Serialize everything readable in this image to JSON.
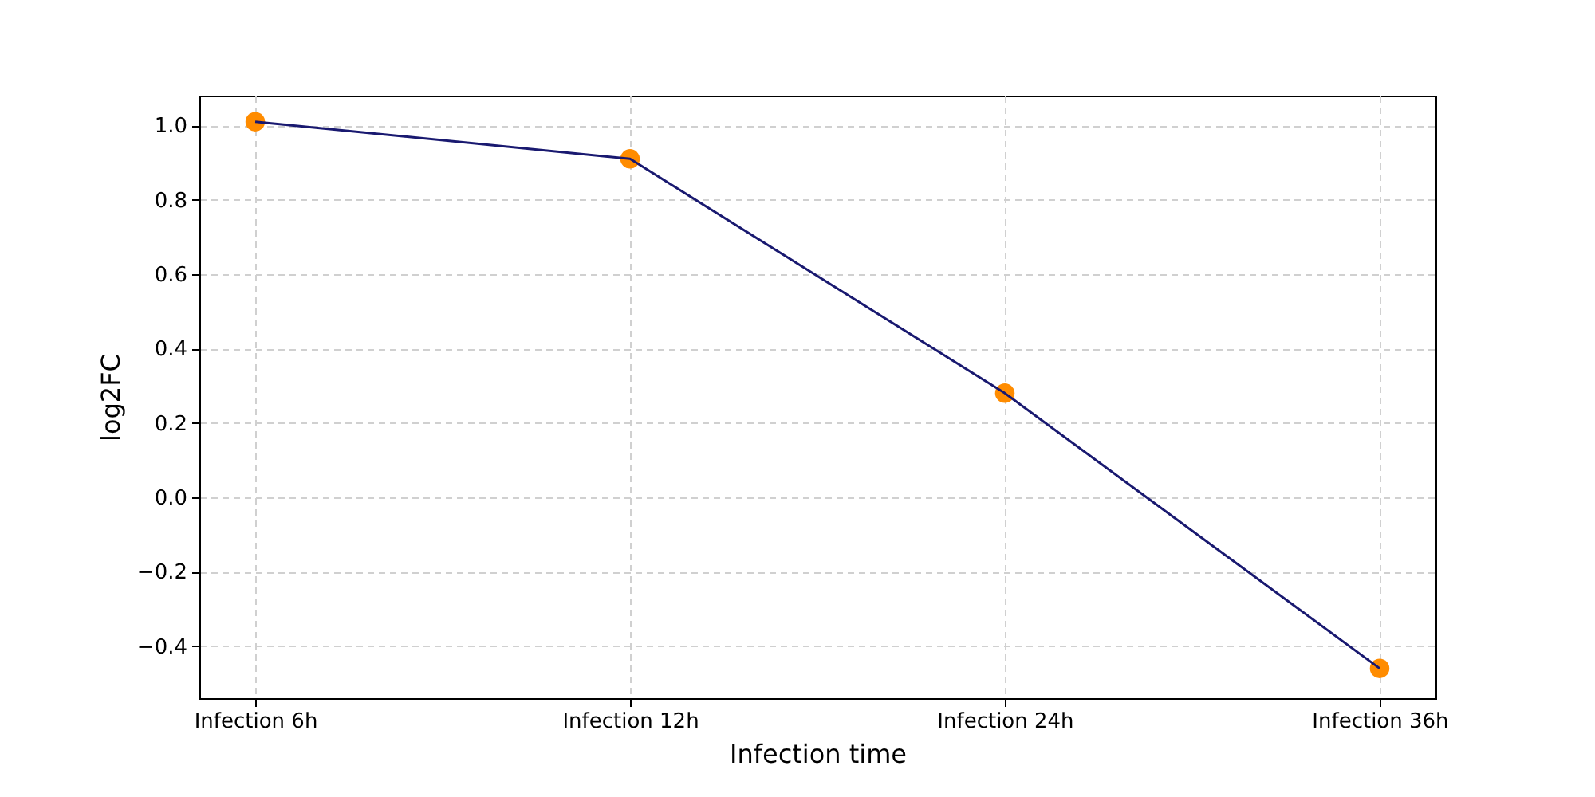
{
  "chart_data": {
    "type": "line",
    "xlabel": "Infection time",
    "ylabel": "log2FC",
    "categories": [
      "Infection 6h",
      "Infection 12h",
      "Infection 24h",
      "Infection 36h"
    ],
    "series": [
      {
        "type": "scatter",
        "color": "#ff8c00",
        "marker": "circle",
        "values": [
          1.01,
          0.91,
          0.28,
          -0.46
        ]
      },
      {
        "color": "#191970",
        "values": [
          1.01,
          0.91,
          0.28,
          -0.46
        ]
      }
    ],
    "ylim": [
      -0.54,
      1.08
    ],
    "yticks": [
      -0.4,
      -0.2,
      {
        "value": 0,
        "label": "0.0"
      },
      0.2,
      0.4,
      0.6,
      0.8,
      {
        "value": 1,
        "label": "1.0"
      }
    ],
    "grid": true
  }
}
